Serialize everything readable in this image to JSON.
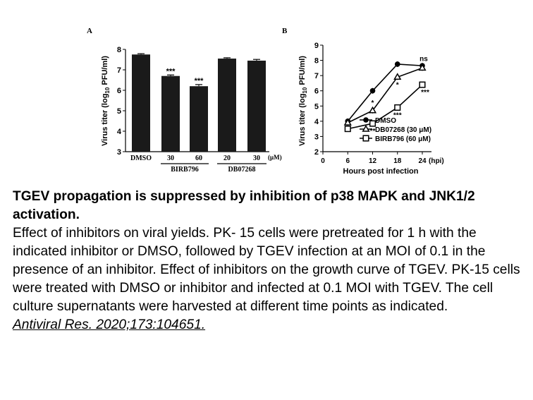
{
  "caption": {
    "title": "TGEV propagation is suppressed by inhibition of p38 MAPK and JNK1/2 activation.",
    "body": "Effect of inhibitors on viral yields. PK- 15 cells were pretreated for 1 h with the indicated inhibitor or DMSO, followed by TGEV infection at an MOI of 0.1 in the presence of an inhibitor. Effect of inhibitors on the growth curve of TGEV. PK-15 cells were treated with DMSO or inhibitor and infected at 0.1 MOI with TGEV. The cell culture supernatants were harvested at different time points as indicated.",
    "citation": "Antiviral Res. 2020;173:104651. "
  },
  "colors": {
    "bar": "#1a1a1a",
    "axis": "#000000",
    "background": "#ffffff"
  },
  "chart_data": [
    {
      "panel": "A",
      "type": "bar",
      "ylabel": "Virus titer (log10 PFU/ml)",
      "ylim": [
        3,
        8
      ],
      "yticks": [
        "3",
        "4",
        "5",
        "6",
        "7",
        "8"
      ],
      "categories": [
        "DMSO",
        "30",
        "60",
        "20",
        "30"
      ],
      "unit_label": "(μM)",
      "groups": [
        {
          "label": "BIRB796",
          "members": [
            1,
            2
          ]
        },
        {
          "label": "DB07268",
          "members": [
            3,
            4
          ]
        }
      ],
      "values": [
        7.75,
        6.7,
        6.2,
        7.55,
        7.45
      ],
      "errors": [
        0.04,
        0.05,
        0.08,
        0.04,
        0.06
      ],
      "annotations": [
        "",
        "***",
        "***",
        "",
        ""
      ],
      "grid": false
    },
    {
      "panel": "B",
      "type": "line",
      "xlabel": "Hours post infection",
      "x_unit": "(hpi)",
      "ylabel": "Virus titer (log10 PFU/ml)",
      "xlim": [
        0,
        24
      ],
      "ylim": [
        2,
        9
      ],
      "xticks": [
        "0",
        "6",
        "12",
        "18",
        "24"
      ],
      "yticks": [
        "2",
        "3",
        "4",
        "5",
        "6",
        "7",
        "8",
        "9"
      ],
      "x": [
        6,
        12,
        18,
        24
      ],
      "series": [
        {
          "name": "DMSO",
          "marker": "circle-filled",
          "values": [
            4.0,
            6.0,
            7.75,
            7.65
          ],
          "annotations": [
            "",
            "",
            "",
            ""
          ]
        },
        {
          "name": "DB07268 (30 μM)",
          "marker": "triangle-open",
          "values": [
            3.9,
            4.7,
            6.9,
            7.5
          ],
          "annotations": [
            "",
            "*",
            "*",
            "ns"
          ]
        },
        {
          "name": "BIRB796 (60 μM)",
          "marker": "square-open",
          "values": [
            3.5,
            3.85,
            4.9,
            6.4
          ],
          "annotations": [
            "",
            "**",
            "***",
            "***"
          ]
        }
      ],
      "legend_position": "bottom-right",
      "grid": false
    }
  ]
}
